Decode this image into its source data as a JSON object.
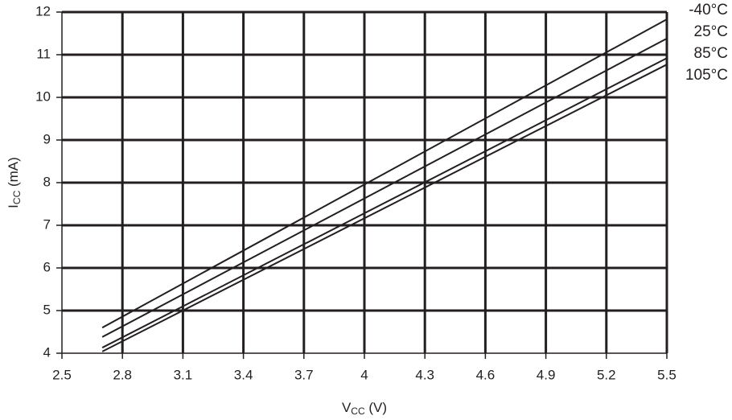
{
  "chart_data": {
    "type": "line",
    "x_label_parts": [
      "V",
      "CC",
      " (V)"
    ],
    "y_label_parts": [
      "I",
      "CC",
      " (mA)"
    ],
    "x": [
      2.7,
      5.5
    ],
    "series": [
      {
        "name": "-40°C",
        "color": "#231f20",
        "values": [
          4.6,
          11.83
        ]
      },
      {
        "name": "25°C",
        "color": "#231f20",
        "values": [
          4.38,
          11.38
        ]
      },
      {
        "name": "85°C",
        "color": "#231f20",
        "values": [
          4.13,
          10.92
        ]
      },
      {
        "name": "105°C",
        "color": "#231f20",
        "values": [
          4.04,
          10.77
        ]
      }
    ],
    "xlim": [
      2.5,
      5.5
    ],
    "xticks": [
      2.5,
      2.8,
      3.1,
      3.4,
      3.7,
      4,
      4.3,
      4.6,
      4.9,
      5.2,
      5.5
    ],
    "ylim": [
      4,
      12
    ],
    "yticks": [
      4,
      5,
      6,
      7,
      8,
      9,
      10,
      11,
      12
    ],
    "grid": true,
    "legend": "right"
  }
}
